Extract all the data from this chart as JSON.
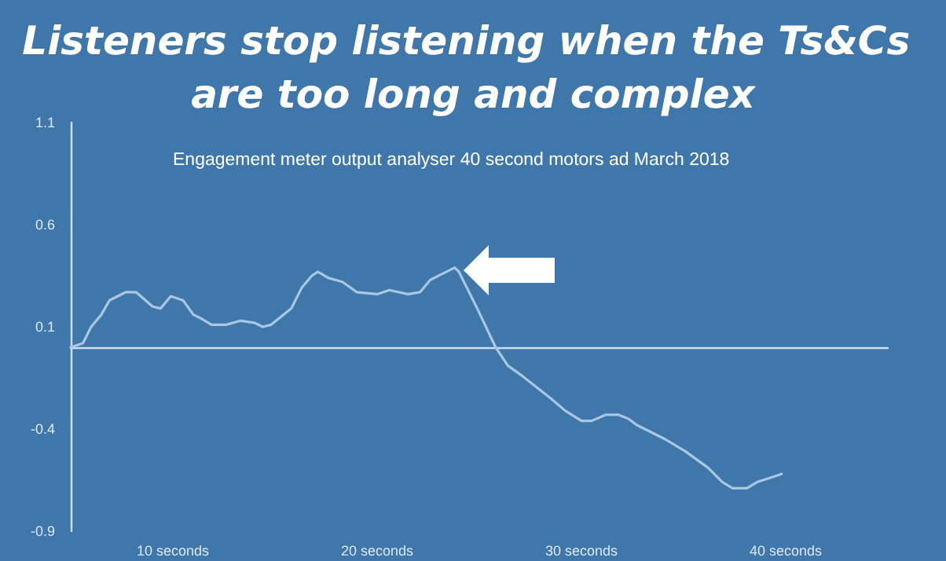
{
  "chart_data": {
    "type": "line",
    "title": "Listeners stop listening when the Ts&Cs are too long and complex",
    "subtitle": "Engagement meter output analyser 40 second motors ad March 2018",
    "xlim": [
      5,
      45
    ],
    "xticks": [
      {
        "value": 10,
        "label": "10 seconds"
      },
      {
        "value": 20,
        "label": "20 seconds"
      },
      {
        "value": 30,
        "label": "30 seconds"
      },
      {
        "value": 40,
        "label": "40 seconds"
      }
    ],
    "ylim": [
      -0.9,
      1.1
    ],
    "yticks": [
      -0.9,
      -0.4,
      0.1,
      0.6,
      1.1
    ],
    "grid": false,
    "marker": "none",
    "line_style": "solid",
    "x": [
      5,
      5.6,
      6.0,
      6.5,
      6.9,
      7.7,
      8.2,
      9.0,
      9.4,
      9.9,
      10.5,
      11.0,
      11.4,
      11.9,
      12.6,
      13.3,
      14.0,
      14.4,
      14.8,
      15.3,
      15.8,
      16.3,
      16.8,
      17.1,
      17.6,
      18.3,
      19.0,
      20.0,
      20.6,
      21.5,
      22.1,
      22.6,
      23.2,
      23.8,
      24.0,
      24.9,
      25.8,
      26.4,
      27.1,
      28.5,
      29.2,
      30.0,
      30.5,
      31.2,
      31.8,
      32.3,
      32.7,
      34.1,
      35.1,
      36.2,
      36.9,
      37.4,
      38.1,
      38.6,
      39.2,
      39.8
    ],
    "series": [
      {
        "color": "#a9c6e2",
        "values": [
          0.0,
          0.02,
          0.1,
          0.16,
          0.23,
          0.27,
          0.27,
          0.2,
          0.19,
          0.25,
          0.23,
          0.16,
          0.14,
          0.11,
          0.11,
          0.13,
          0.12,
          0.1,
          0.11,
          0.15,
          0.19,
          0.29,
          0.35,
          0.37,
          0.34,
          0.32,
          0.27,
          0.26,
          0.28,
          0.26,
          0.27,
          0.33,
          0.36,
          0.39,
          0.37,
          0.19,
          0.0,
          -0.09,
          -0.14,
          -0.25,
          -0.31,
          -0.36,
          -0.36,
          -0.33,
          -0.33,
          -0.35,
          -0.38,
          -0.45,
          -0.51,
          -0.59,
          -0.66,
          -0.69,
          -0.69,
          -0.66,
          -0.64,
          -0.62
        ]
      }
    ]
  }
}
